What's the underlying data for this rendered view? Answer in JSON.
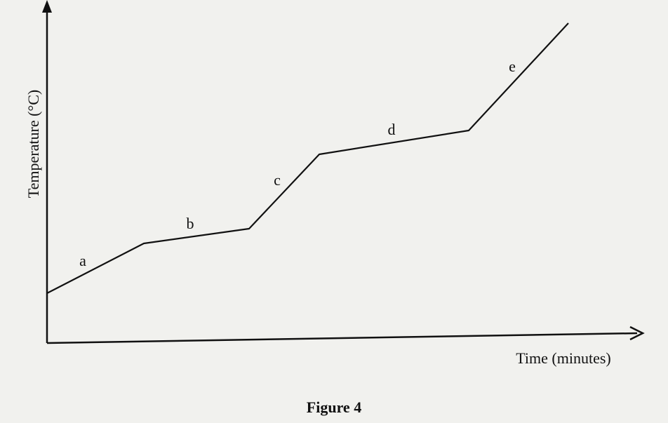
{
  "diagram": {
    "y_axis_label": "Temperature (°C)",
    "x_axis_label": "Time (minutes)",
    "segments": [
      {
        "label": "a"
      },
      {
        "label": "b"
      },
      {
        "label": "c"
      },
      {
        "label": "d"
      },
      {
        "label": "e"
      }
    ],
    "caption": "Figure 4"
  }
}
